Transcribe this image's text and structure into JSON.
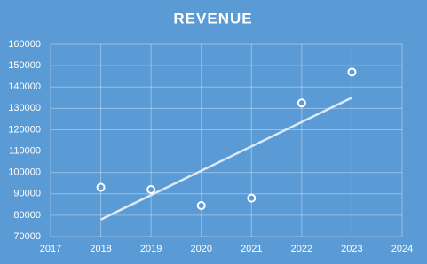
{
  "chart_data": {
    "type": "scatter",
    "title": "REVENUE",
    "x": [
      2018,
      2019,
      2020,
      2021,
      2022,
      2023
    ],
    "values": [
      93000,
      92000,
      84500,
      88000,
      132500,
      147000
    ],
    "color": "#ffffff",
    "trendline": {
      "x": [
        2018,
        2023
      ],
      "values": [
        78000,
        135000
      ],
      "color": "#dbe8f5"
    },
    "xlim": [
      2017,
      2024
    ],
    "xticks": [
      2017,
      2018,
      2019,
      2020,
      2021,
      2022,
      2023,
      2024
    ],
    "ylim": [
      70000,
      160000
    ],
    "yticks": [
      70000,
      80000,
      90000,
      100000,
      110000,
      120000,
      130000,
      140000,
      150000,
      160000
    ],
    "grid": true
  }
}
